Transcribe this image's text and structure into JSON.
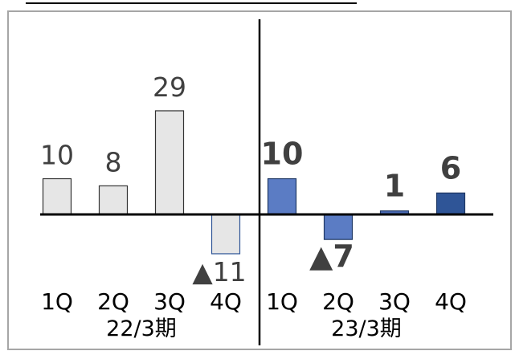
{
  "chart_data": {
    "type": "bar",
    "categories": [
      "1Q",
      "2Q",
      "3Q",
      "4Q",
      "1Q",
      "2Q",
      "3Q",
      "4Q"
    ],
    "groups": [
      {
        "label": "22/3期",
        "start": 0,
        "end": 3
      },
      {
        "label": "23/3期",
        "start": 4,
        "end": 7
      }
    ],
    "values": [
      10,
      8,
      29,
      -11,
      10,
      -7,
      1,
      6
    ],
    "value_labels": [
      "10",
      "8",
      "29",
      "▲11",
      "10",
      "▲7",
      "1",
      "6"
    ],
    "ylim": [
      -12,
      35
    ],
    "colors": {
      "prior_fill": "#e6e6e6",
      "prior_stroke": "#333333",
      "prior_neg_stroke": "#2f5597",
      "current_fills": [
        "#5b7cc4",
        "#5b7cc4",
        "#4a6bb5",
        "#2f5597"
      ],
      "current_stroke": "#1f3864",
      "prior_label": "#404040",
      "current_label": "#404040",
      "axis": "#000000",
      "frame": "#a6a6a6"
    }
  }
}
